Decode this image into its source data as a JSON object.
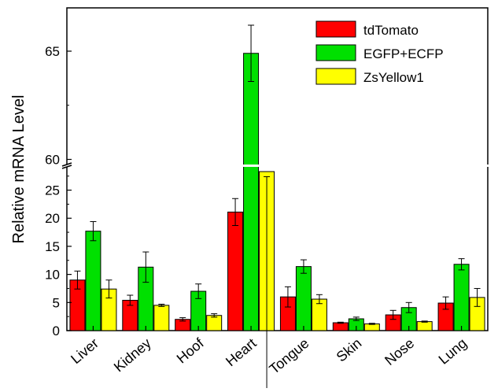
{
  "chart_data": {
    "type": "bar",
    "title": "",
    "xlabel": "",
    "ylabel": "Relative mRNA Level",
    "categories": [
      "Liver",
      "Kidney",
      "Hoof",
      "Heart",
      "Tongue",
      "Skin",
      "Nose",
      "Lung"
    ],
    "series": [
      {
        "name": "tdTomato",
        "color": "#ff0000",
        "values": [
          9.0,
          5.4,
          2.0,
          21.1,
          6.0,
          1.4,
          2.8,
          4.9
        ],
        "errors": [
          1.6,
          0.9,
          0.3,
          2.4,
          1.8,
          0.1,
          0.8,
          1.1
        ]
      },
      {
        "name": "EGFP+ECFP",
        "color": "#00e000",
        "values": [
          17.7,
          11.3,
          7.0,
          64.9,
          11.4,
          2.1,
          4.1,
          11.8
        ],
        "errors": [
          1.7,
          2.7,
          1.3,
          1.3,
          1.2,
          0.3,
          0.9,
          1.0
        ]
      },
      {
        "name": "ZsYellow1",
        "color": "#ffff00",
        "values": [
          7.4,
          4.5,
          2.7,
          28.3,
          5.6,
          1.2,
          1.6,
          5.9
        ],
        "errors": [
          1.6,
          0.2,
          0.3,
          0.9,
          0.8,
          0.1,
          0.1,
          1.6
        ]
      }
    ],
    "y_axis": {
      "broken": true,
      "lower_range": [
        0,
        29
      ],
      "upper_range": [
        59.8,
        67
      ],
      "lower_ticks": [
        0,
        5,
        10,
        15,
        20,
        25
      ],
      "upper_ticks": [
        60,
        65
      ]
    },
    "legend_position": "top-right",
    "grid": false
  }
}
